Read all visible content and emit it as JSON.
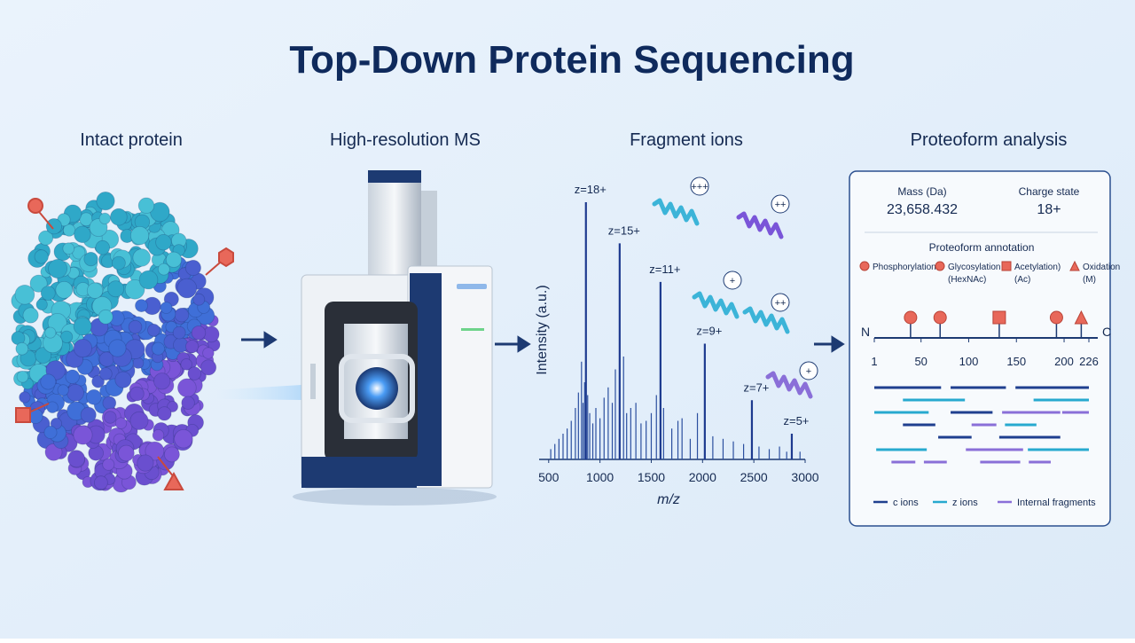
{
  "title": "Top-Down Protein Sequencing",
  "stages": [
    "Intact protein",
    "High-resolution MS",
    "Fragment ions",
    "Proteoform analysis"
  ],
  "spectrum": {
    "xlabel": "m/z",
    "ylabel": "Intensity (a.u.)",
    "xlim": [
      450,
      3000
    ],
    "xticks": [
      500,
      1000,
      1500,
      2000,
      2500,
      3000
    ],
    "ylim": [
      0,
      100
    ],
    "peaks": [
      {
        "label": "z=18+",
        "mz": 863,
        "intensity": 100
      },
      {
        "label": "z=15+",
        "mz": 1192,
        "intensity": 84
      },
      {
        "label": "z=11+",
        "mz": 1590,
        "intensity": 69
      },
      {
        "label": "z=9+",
        "mz": 2022,
        "intensity": 45
      },
      {
        "label": "z=7+",
        "mz": 2481,
        "intensity": 23
      },
      {
        "label": "z=5+",
        "mz": 2870,
        "intensity": 10
      }
    ],
    "minor_peaks": {
      "mz": [
        520,
        560,
        600,
        640,
        680,
        720,
        760,
        790,
        820,
        835,
        850,
        880,
        900,
        930,
        960,
        1000,
        1040,
        1080,
        1120,
        1150,
        1230,
        1260,
        1300,
        1350,
        1400,
        1450,
        1500,
        1550,
        1620,
        1700,
        1760,
        1800,
        1880,
        1950,
        2100,
        2200,
        2300,
        2400,
        2550,
        2650,
        2750,
        2820,
        2950
      ],
      "intensity": [
        4,
        6,
        8,
        10,
        12,
        15,
        20,
        26,
        38,
        22,
        30,
        25,
        18,
        14,
        20,
        16,
        24,
        28,
        22,
        35,
        40,
        18,
        20,
        22,
        14,
        15,
        18,
        25,
        20,
        12,
        15,
        16,
        8,
        18,
        9,
        8,
        7,
        6,
        5,
        4,
        5,
        3,
        3
      ]
    }
  },
  "fragment_ions": [
    "+++",
    "++",
    "+",
    "++",
    "+"
  ],
  "proteoform": {
    "mass_label": "Mass (Da)",
    "mass": "23,658.432",
    "charge_label": "Charge state",
    "charge": "18+",
    "annotation_title": "Proteoform annotation",
    "modifications": [
      {
        "label": [
          "Phosphorylation"
        ],
        "shape": "circle"
      },
      {
        "label": [
          "Glycosylation",
          "(HexNAc)"
        ],
        "shape": "circle"
      },
      {
        "label": [
          "Acetylation)",
          "(Ac)"
        ],
        "shape": "square"
      },
      {
        "label": [
          "Oxidation",
          "(M)"
        ],
        "shape": "triangle"
      }
    ],
    "mod_color": "#e8685a",
    "sites": [
      {
        "mod": 0,
        "position": 39
      },
      {
        "mod": 1,
        "position": 70
      },
      {
        "mod": 2,
        "position": 132
      },
      {
        "mod": 0,
        "position": 192
      },
      {
        "mod": 3,
        "position": 218
      }
    ],
    "sequence": {
      "start_label": "N",
      "end_label": "C",
      "range": [
        1,
        226
      ],
      "ticks": [
        1,
        50,
        100,
        150,
        200,
        226
      ]
    },
    "fragment_types": [
      {
        "name": "c ions",
        "color": "#1f3f8f"
      },
      {
        "name": "z ions",
        "color": "#27a9cf"
      },
      {
        "name": "Internal fragments",
        "color": "#8a6fd8"
      }
    ],
    "fragment_rows": [
      [
        [
          0,
          1,
          71
        ],
        [
          0,
          81,
          139
        ],
        [
          0,
          149,
          226
        ]
      ],
      [
        [
          1,
          31,
          96
        ],
        [
          1,
          168,
          226
        ]
      ],
      [
        [
          1,
          1,
          58
        ],
        [
          0,
          81,
          125
        ],
        [
          2,
          135,
          196
        ],
        [
          2,
          198,
          226
        ]
      ],
      [
        [
          0,
          31,
          65
        ],
        [
          2,
          103,
          129
        ],
        [
          1,
          138,
          171
        ]
      ],
      [
        [
          0,
          68,
          103
        ],
        [
          0,
          132,
          196
        ]
      ],
      [
        [
          1,
          3,
          56
        ],
        [
          2,
          97,
          157
        ],
        [
          1,
          162,
          226
        ]
      ],
      [
        [
          2,
          19,
          44
        ],
        [
          2,
          53,
          77
        ],
        [
          2,
          112,
          154
        ],
        [
          2,
          163,
          186
        ]
      ]
    ]
  }
}
